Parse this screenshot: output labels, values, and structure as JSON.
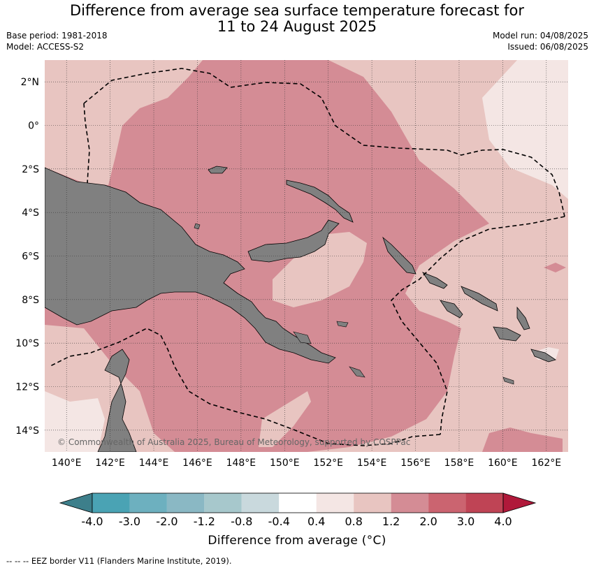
{
  "title_line1": "Difference from average sea surface temperature forecast for",
  "title_line2": "11 to 24 August 2025",
  "meta": {
    "base_period": "Base period: 1981-2018",
    "model": "Model: ACCESS-S2",
    "model_run": "Model run: 04/08/2025",
    "issued": "Issued: 06/08/2025"
  },
  "map": {
    "lon_range": [
      139,
      163
    ],
    "lat_range": [
      -15,
      3
    ],
    "lon_ticks": [
      "140°E",
      "142°E",
      "144°E",
      "146°E",
      "148°E",
      "150°E",
      "152°E",
      "154°E",
      "156°E",
      "158°E",
      "160°E",
      "162°E"
    ],
    "lat_ticks": [
      "2°N",
      "0°",
      "2°S",
      "4°S",
      "6°S",
      "8°S",
      "10°S",
      "12°S",
      "14°S"
    ],
    "land_color": "#808080",
    "grid": "dotted",
    "copyright": "© Commonwealth of Australia 2025, Bureau of Meteorology, supported by COSPPac"
  },
  "colorbar": {
    "title": "Difference from average (°C)",
    "labels": [
      "-4.0",
      "-3.0",
      "-2.0",
      "-1.2",
      "-0.8",
      "-0.4",
      "0.4",
      "0.8",
      "1.2",
      "2.0",
      "3.0",
      "4.0"
    ],
    "colors": [
      "#3d7f8b",
      "#4aa3b4",
      "#6db0bf",
      "#8ab8c4",
      "#a7c8cc",
      "#c9d9dd",
      "#ffffff",
      "#f4e6e4",
      "#e8c5c1",
      "#d48c95",
      "#cb6470",
      "#bf4455",
      "#b0193a"
    ]
  },
  "footnote": "--  --  -- EEZ border V11 (Flanders Marine Institute, 2019)."
}
